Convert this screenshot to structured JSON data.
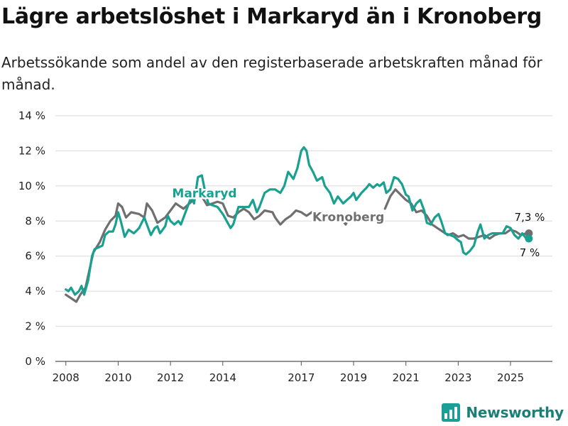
{
  "title": "Lägre arbetslöshet i Markaryd än i Kronoberg",
  "subtitle": "Arbetssökande som andel av den registerbaserade arbetskraften månad för månad.",
  "brand": {
    "name": "Newsworthy",
    "icon": "newsworthy-chart-logo-icon",
    "color": "#1b9e96"
  },
  "chart_data": {
    "type": "line",
    "ylim": [
      0,
      14
    ],
    "xlim": [
      2007.6,
      2026.6
    ],
    "y_ticks": [
      0,
      2,
      4,
      6,
      8,
      10,
      12,
      14
    ],
    "y_tick_labels": [
      "0 %",
      "2 %",
      "4 %",
      "6 %",
      "8 %",
      "10 %",
      "12 %",
      "14 %"
    ],
    "x_ticks": [
      2008,
      2010,
      2012,
      2014,
      2017,
      2019,
      2021,
      2023,
      2025
    ],
    "x_tick_labels": [
      "2008",
      "2010",
      "2012",
      "2014",
      "2017",
      "2019",
      "2021",
      "2023",
      "2025"
    ],
    "grid": true,
    "series": [
      {
        "name": "Kronoberg",
        "color": "#6f6f6f",
        "end_label": "7,3 %",
        "values": [
          [
            2008.0,
            3.8
          ],
          [
            2008.2,
            3.6
          ],
          [
            2008.4,
            3.4
          ],
          [
            2008.55,
            3.8
          ],
          [
            2008.75,
            4.2
          ],
          [
            2008.9,
            5.2
          ],
          [
            2009.05,
            6.2
          ],
          [
            2009.3,
            6.8
          ],
          [
            2009.5,
            7.5
          ],
          [
            2009.7,
            8.0
          ],
          [
            2009.9,
            8.3
          ],
          [
            2010.0,
            9.0
          ],
          [
            2010.15,
            8.8
          ],
          [
            2010.3,
            8.2
          ],
          [
            2010.5,
            8.5
          ],
          [
            2010.8,
            8.4
          ],
          [
            2011.0,
            8.2
          ],
          [
            2011.1,
            9.0
          ],
          [
            2011.3,
            8.6
          ],
          [
            2011.5,
            7.9
          ],
          [
            2011.8,
            8.2
          ],
          [
            2012.0,
            8.6
          ],
          [
            2012.2,
            9.0
          ],
          [
            2012.5,
            8.7
          ],
          [
            2012.8,
            9.1
          ],
          [
            2013.0,
            9.8
          ],
          [
            2013.2,
            9.4
          ],
          [
            2013.4,
            8.9
          ],
          [
            2013.6,
            9.0
          ],
          [
            2013.8,
            9.1
          ],
          [
            2014.0,
            9.0
          ],
          [
            2014.2,
            8.3
          ],
          [
            2014.4,
            8.2
          ],
          [
            2014.6,
            8.5
          ],
          [
            2014.8,
            8.7
          ],
          [
            2015.0,
            8.5
          ],
          [
            2015.2,
            8.1
          ],
          [
            2015.4,
            8.3
          ],
          [
            2015.6,
            8.6
          ],
          [
            2015.9,
            8.5
          ],
          [
            2016.0,
            8.2
          ],
          [
            2016.2,
            7.8
          ],
          [
            2016.4,
            8.1
          ],
          [
            2016.6,
            8.3
          ],
          [
            2016.8,
            8.6
          ],
          [
            2017.0,
            8.5
          ],
          [
            2017.2,
            8.3
          ],
          [
            2017.4,
            8.5
          ],
          [
            2017.6,
            8.5
          ]
        ]
      },
      {
        "name": "Kronoberg",
        "color": "#6f6f6f",
        "values": [
          [
            2018.6,
            8.0
          ],
          [
            2018.7,
            7.8
          ],
          [
            2018.8,
            8.1
          ]
        ]
      },
      {
        "name": "Kronoberg",
        "color": "#6f6f6f",
        "values": [
          [
            2020.2,
            8.7
          ],
          [
            2020.4,
            9.4
          ],
          [
            2020.6,
            9.8
          ],
          [
            2020.8,
            9.5
          ],
          [
            2021.0,
            9.2
          ],
          [
            2021.2,
            9.0
          ],
          [
            2021.4,
            8.5
          ],
          [
            2021.6,
            8.6
          ],
          [
            2021.8,
            8.3
          ],
          [
            2022.0,
            7.8
          ],
          [
            2022.2,
            7.6
          ],
          [
            2022.4,
            7.4
          ],
          [
            2022.6,
            7.2
          ],
          [
            2022.8,
            7.3
          ],
          [
            2023.0,
            7.1
          ],
          [
            2023.2,
            7.2
          ],
          [
            2023.4,
            7.0
          ],
          [
            2023.6,
            7.0
          ],
          [
            2023.8,
            7.1
          ],
          [
            2024.0,
            7.2
          ],
          [
            2024.2,
            7.0
          ],
          [
            2024.4,
            7.2
          ],
          [
            2024.6,
            7.3
          ],
          [
            2024.8,
            7.3
          ],
          [
            2025.0,
            7.5
          ],
          [
            2025.2,
            7.4
          ],
          [
            2025.4,
            7.2
          ],
          [
            2025.6,
            7.3
          ],
          [
            2025.7,
            7.3
          ]
        ]
      },
      {
        "name": "Markaryd",
        "color": "#18a091",
        "end_label": "7 %",
        "values": [
          [
            2008.0,
            4.1
          ],
          [
            2008.1,
            4.0
          ],
          [
            2008.2,
            4.2
          ],
          [
            2008.35,
            3.8
          ],
          [
            2008.5,
            4.0
          ],
          [
            2008.6,
            4.3
          ],
          [
            2008.7,
            3.8
          ],
          [
            2008.85,
            4.6
          ],
          [
            2009.0,
            6.0
          ],
          [
            2009.1,
            6.4
          ],
          [
            2009.25,
            6.5
          ],
          [
            2009.4,
            6.6
          ],
          [
            2009.5,
            7.2
          ],
          [
            2009.65,
            7.4
          ],
          [
            2009.8,
            7.4
          ],
          [
            2009.9,
            7.8
          ],
          [
            2010.0,
            8.5
          ],
          [
            2010.1,
            8.0
          ],
          [
            2010.25,
            7.1
          ],
          [
            2010.4,
            7.5
          ],
          [
            2010.6,
            7.3
          ],
          [
            2010.8,
            7.6
          ],
          [
            2011.0,
            8.2
          ],
          [
            2011.1,
            7.8
          ],
          [
            2011.25,
            7.2
          ],
          [
            2011.4,
            7.6
          ],
          [
            2011.5,
            7.7
          ],
          [
            2011.6,
            7.3
          ],
          [
            2011.8,
            7.7
          ],
          [
            2011.9,
            8.3
          ],
          [
            2012.0,
            8.0
          ],
          [
            2012.15,
            7.8
          ],
          [
            2012.3,
            8.0
          ],
          [
            2012.4,
            7.8
          ],
          [
            2012.6,
            8.6
          ],
          [
            2012.8,
            9.4
          ],
          [
            2012.9,
            9.0
          ],
          [
            2013.05,
            10.5
          ],
          [
            2013.2,
            10.6
          ],
          [
            2013.35,
            9.5
          ],
          [
            2013.45,
            9.0
          ],
          [
            2013.6,
            8.9
          ],
          [
            2013.8,
            8.8
          ],
          [
            2014.0,
            8.4
          ],
          [
            2014.15,
            8.0
          ],
          [
            2014.3,
            7.6
          ],
          [
            2014.4,
            7.8
          ],
          [
            2014.6,
            8.8
          ],
          [
            2014.8,
            8.8
          ],
          [
            2015.0,
            8.8
          ],
          [
            2015.15,
            9.2
          ],
          [
            2015.3,
            8.5
          ],
          [
            2015.4,
            8.8
          ],
          [
            2015.6,
            9.6
          ],
          [
            2015.8,
            9.8
          ],
          [
            2016.0,
            9.8
          ],
          [
            2016.2,
            9.6
          ],
          [
            2016.35,
            10.0
          ],
          [
            2016.5,
            10.8
          ],
          [
            2016.7,
            10.4
          ],
          [
            2016.85,
            11.0
          ],
          [
            2017.0,
            12.0
          ],
          [
            2017.1,
            12.2
          ],
          [
            2017.2,
            12.0
          ],
          [
            2017.3,
            11.2
          ],
          [
            2017.45,
            10.8
          ],
          [
            2017.6,
            10.3
          ],
          [
            2017.8,
            10.5
          ],
          [
            2017.9,
            10.0
          ],
          [
            2018.1,
            9.6
          ],
          [
            2018.25,
            9.0
          ],
          [
            2018.4,
            9.4
          ],
          [
            2018.6,
            9.0
          ],
          [
            2018.75,
            9.2
          ],
          [
            2018.9,
            9.4
          ],
          [
            2019.0,
            9.6
          ],
          [
            2019.1,
            9.2
          ],
          [
            2019.3,
            9.6
          ],
          [
            2019.5,
            9.9
          ],
          [
            2019.6,
            10.1
          ],
          [
            2019.75,
            9.9
          ],
          [
            2019.9,
            10.1
          ],
          [
            2020.0,
            10.0
          ],
          [
            2020.15,
            10.2
          ],
          [
            2020.25,
            9.6
          ],
          [
            2020.4,
            9.8
          ],
          [
            2020.55,
            10.5
          ],
          [
            2020.7,
            10.4
          ],
          [
            2020.85,
            10.1
          ],
          [
            2021.0,
            9.5
          ],
          [
            2021.1,
            9.4
          ],
          [
            2021.25,
            8.6
          ],
          [
            2021.4,
            9.0
          ],
          [
            2021.55,
            9.2
          ],
          [
            2021.7,
            8.6
          ],
          [
            2021.8,
            7.9
          ],
          [
            2021.95,
            7.8
          ],
          [
            2022.1,
            8.2
          ],
          [
            2022.25,
            8.4
          ],
          [
            2022.35,
            8.0
          ],
          [
            2022.5,
            7.3
          ],
          [
            2022.7,
            7.2
          ],
          [
            2022.85,
            7.1
          ],
          [
            2023.0,
            6.9
          ],
          [
            2023.1,
            6.8
          ],
          [
            2023.2,
            6.2
          ],
          [
            2023.3,
            6.1
          ],
          [
            2023.45,
            6.3
          ],
          [
            2023.6,
            6.6
          ],
          [
            2023.75,
            7.4
          ],
          [
            2023.85,
            7.8
          ],
          [
            2024.0,
            7.0
          ],
          [
            2024.15,
            7.2
          ],
          [
            2024.3,
            7.3
          ],
          [
            2024.5,
            7.3
          ],
          [
            2024.7,
            7.3
          ],
          [
            2024.85,
            7.7
          ],
          [
            2025.0,
            7.6
          ],
          [
            2025.15,
            7.2
          ],
          [
            2025.3,
            7.0
          ],
          [
            2025.45,
            7.3
          ],
          [
            2025.6,
            7.0
          ],
          [
            2025.7,
            7.0
          ]
        ]
      }
    ]
  }
}
